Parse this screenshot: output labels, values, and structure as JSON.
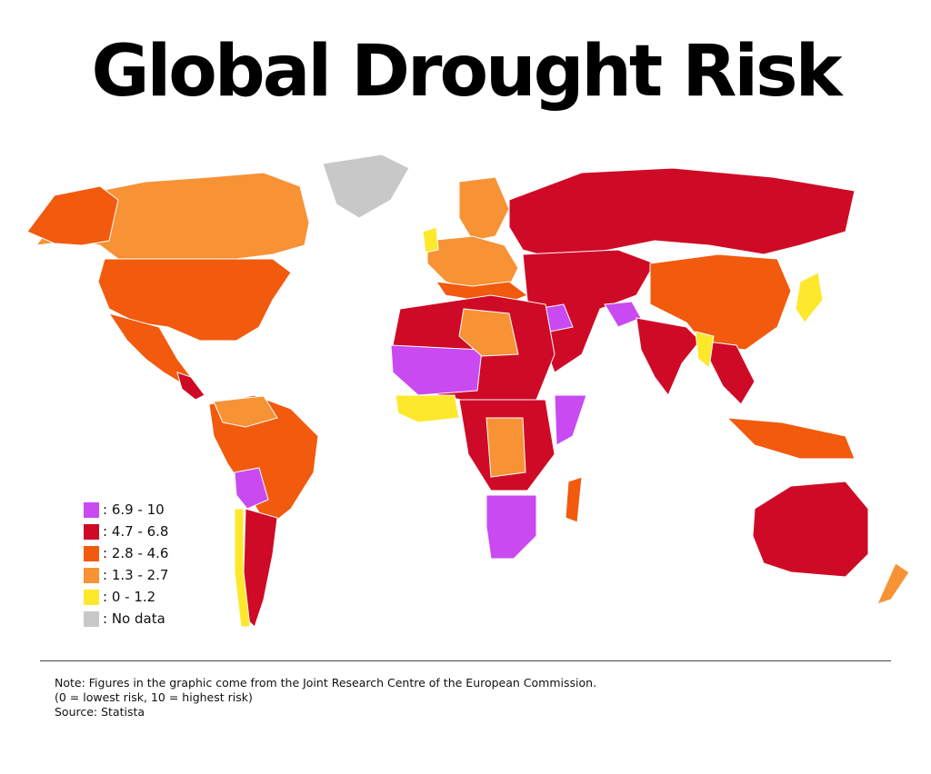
{
  "title": "Global Drought Risk",
  "legend": [
    {
      "label": ": 6.9 - 10",
      "color": "#c94af0"
    },
    {
      "label": ": 4.7 - 6.8",
      "color": "#cf0a26"
    },
    {
      "label": ": 2.8 - 4.6",
      "color": "#f25a0e"
    },
    {
      "label": ": 1.3 - 2.7",
      "color": "#f79235"
    },
    {
      "label": ": 0 - 1.2",
      "color": "#fde82c"
    },
    {
      "label": ": No data",
      "color": "#c8c8c8"
    }
  ],
  "notes": {
    "line1": "Note: Figures in the graphic come from the Joint Research Centre of the European Commission.",
    "line2": "(0 = lowest risk, 10 = highest risk)",
    "line3": "Source: Statista"
  }
}
